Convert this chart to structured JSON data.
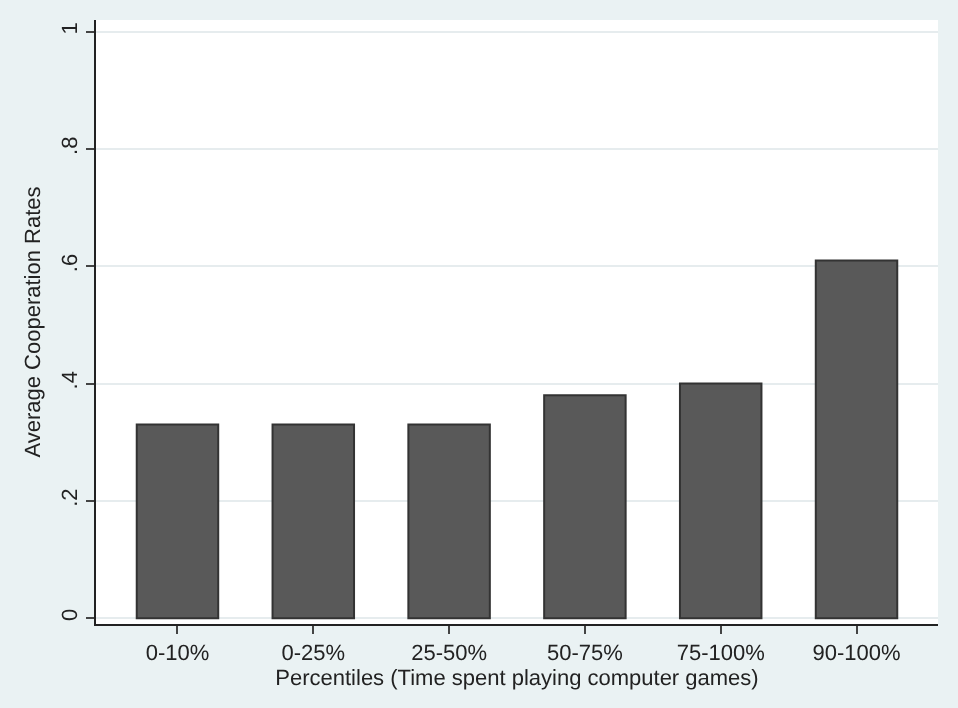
{
  "chart_data": {
    "type": "bar",
    "xlabel": "Percentiles (Time spent playing computer games)",
    "ylabel": "Average Cooperation Rates",
    "categories": [
      "0-10%",
      "0-25%",
      "25-50%",
      "50-75%",
      "75-100%",
      "90-100%"
    ],
    "values": [
      0.33,
      0.33,
      0.33,
      0.38,
      0.4,
      0.61
    ],
    "color": "#595959",
    "ylim": [
      -0.01,
      1.02
    ],
    "yticks": [
      {
        "value": 0,
        "label": "0"
      },
      {
        "value": 0.2,
        "label": ".2"
      },
      {
        "value": 0.4,
        "label": ".4"
      },
      {
        "value": 0.6,
        "label": ".6"
      },
      {
        "value": 0.8,
        "label": ".8"
      },
      {
        "value": 1,
        "label": "1"
      }
    ],
    "grid": "y"
  }
}
